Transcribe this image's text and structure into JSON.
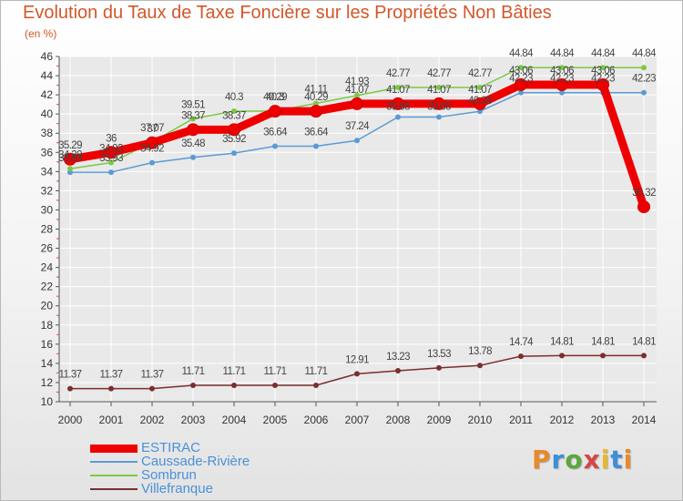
{
  "title": "Evolution du Taux de Taxe Foncière sur les Propriétés Non Bâties",
  "subtitle": "(en %)",
  "logo": {
    "text": "Proxiti",
    "colors": [
      "#e8892b",
      "#3d8fd6",
      "#5aa83b",
      "#d64646",
      "#e8b92b",
      "#3d8fd6",
      "#e8892b"
    ]
  },
  "colors": {
    "title": "#d2572a",
    "grid": "#ffffff",
    "axis": "#555555",
    "value_label": "#444444"
  },
  "chart_data": {
    "type": "line",
    "title": "Evolution du Taux de Taxe Foncière sur les Propriétés Non Bâties",
    "subtitle": "(en %)",
    "xlabel": "",
    "ylabel": "(en %)",
    "categories": [
      "2000",
      "2001",
      "2002",
      "2003",
      "2004",
      "2005",
      "2006",
      "2007",
      "2008",
      "2009",
      "2010",
      "2011",
      "2012",
      "2013",
      "2014"
    ],
    "ylim": [
      10,
      46
    ],
    "yticks": [
      10,
      12,
      14,
      16,
      18,
      20,
      22,
      24,
      26,
      28,
      30,
      32,
      34,
      36,
      38,
      40,
      42,
      44,
      46
    ],
    "grid": true,
    "legend_position": "bottom-left",
    "series": [
      {
        "name": "ESTIRAC",
        "color": "#ee0000",
        "values": [
          35.29,
          36,
          37,
          38.37,
          38.37,
          40.29,
          40.29,
          41.07,
          41.07,
          41.07,
          41.07,
          43.06,
          43.06,
          43.06,
          30.32
        ],
        "labels": [
          "35.29",
          "36",
          "37",
          "38.37",
          "38.37",
          "40.29",
          "40.29",
          "41.07",
          "41.07",
          "41.07",
          "41.07",
          "43.06",
          "43.06",
          "43.06",
          "30.32"
        ]
      },
      {
        "name": "Caussade-Rivière",
        "color": "#5b9bd5",
        "values": [
          33.93,
          33.93,
          34.92,
          35.48,
          35.92,
          36.64,
          36.64,
          37.24,
          39.68,
          39.68,
          40.28,
          42.23,
          42.23,
          42.23,
          42.23
        ],
        "labels": [
          "33.93",
          "33.93",
          "34.92",
          "35.48",
          "35.92",
          "36.64",
          "36.64",
          "37.24",
          "39.68",
          "39.68",
          "40.28",
          "42.23",
          "42.23",
          "42.23",
          "42.23"
        ]
      },
      {
        "name": "Sombrun",
        "color": "#7ac943",
        "values": [
          34.29,
          34.93,
          37.07,
          39.51,
          40.3,
          40.3,
          41.11,
          41.93,
          42.77,
          42.77,
          42.77,
          44.84,
          44.84,
          44.84,
          44.84
        ],
        "labels": [
          "34.29",
          "34.93",
          "37.07",
          "39.51",
          "40.3",
          "40.3",
          "41.11",
          "41.93",
          "42.77",
          "42.77",
          "42.77",
          "44.84",
          "44.84",
          "44.84",
          "44.84"
        ]
      },
      {
        "name": "Villefranque",
        "color": "#7b2e2e",
        "values": [
          11.37,
          11.37,
          11.37,
          11.71,
          11.71,
          11.71,
          11.71,
          12.91,
          13.23,
          13.53,
          13.78,
          14.74,
          14.81,
          14.81,
          14.81
        ],
        "labels": [
          "11.37",
          "11.37",
          "11.37",
          "11.71",
          "11.71",
          "11.71",
          "11.71",
          "12.91",
          "13.23",
          "13.53",
          "13.78",
          "14.74",
          "14.81",
          "14.81",
          "14.81"
        ]
      }
    ]
  }
}
